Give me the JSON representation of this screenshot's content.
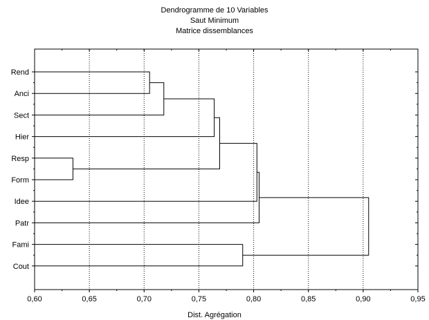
{
  "chart_data": {
    "type": "dendrogram",
    "title": "Dendrogramme de 10  Variables",
    "subtitle": "Saut Minimum",
    "subtitle2": "Matrice dissemblances",
    "xlabel": "Dist. Agrégation",
    "ylabel": "",
    "xlim": [
      0.6,
      0.95
    ],
    "x_ticks": [
      "0,60",
      "0,65",
      "0,70",
      "0,75",
      "0,80",
      "0,85",
      "0,90",
      "0,95"
    ],
    "grid_x": [
      0.65,
      0.7,
      0.75,
      0.8,
      0.85,
      0.9
    ],
    "leaves": [
      "Rend",
      "Anci",
      "Sect",
      "Hier",
      "Resp",
      "Form",
      "Idee",
      "Patr",
      "Fami",
      "Cout"
    ],
    "merges": [
      {
        "a": "Resp",
        "b": "Form",
        "height": 0.635
      },
      {
        "a": "Rend",
        "b": "Anci",
        "height": 0.705
      },
      {
        "a": "C2",
        "b": "Sect",
        "height": 0.718
      },
      {
        "a": "C3",
        "b": "Hier",
        "height": 0.764
      },
      {
        "a": "C4",
        "b": "C1",
        "height": 0.769
      },
      {
        "a": "Fami",
        "b": "Cout",
        "height": 0.79
      },
      {
        "a": "C5",
        "b": "Idee",
        "height": 0.803
      },
      {
        "a": "C7",
        "b": "Patr",
        "height": 0.805
      },
      {
        "a": "C8",
        "b": "C6",
        "height": 0.905
      }
    ]
  }
}
